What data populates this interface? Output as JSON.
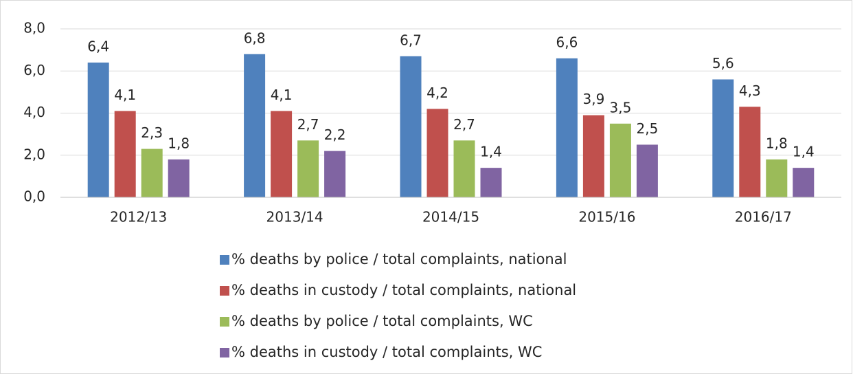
{
  "chart_data": {
    "type": "bar",
    "categories": [
      "2012/13",
      "2013/14",
      "2014/15",
      "2015/16",
      "2016/17"
    ],
    "series": [
      {
        "name": "% deaths by police / total complaints, national",
        "color": "#4f81bd",
        "values": [
          6.4,
          6.8,
          6.7,
          6.6,
          5.6
        ],
        "value_labels": [
          "6,4",
          "6,8",
          "6,7",
          "6,6",
          "5,6"
        ]
      },
      {
        "name": "% deaths in custody / total complaints, national",
        "color": "#c0504d",
        "values": [
          4.1,
          4.1,
          4.2,
          3.9,
          4.3
        ],
        "value_labels": [
          "4,1",
          "4,1",
          "4,2",
          "3,9",
          "4,3"
        ]
      },
      {
        "name": "% deaths by police / total complaints, WC",
        "color": "#9bbb59",
        "values": [
          2.3,
          2.7,
          2.7,
          3.5,
          1.8
        ],
        "value_labels": [
          "2,3",
          "2,7",
          "2,7",
          "3,5",
          "1,8"
        ]
      },
      {
        "name": "% deaths in custody / total complaints, WC",
        "color": "#8064a2",
        "values": [
          1.8,
          2.2,
          1.4,
          2.5,
          1.4
        ],
        "value_labels": [
          "1,8",
          "2,2",
          "1,4",
          "2,5",
          "1,4"
        ]
      }
    ],
    "ylim": [
      0,
      8
    ],
    "yticks": [
      {
        "value": 0,
        "label": "0,0"
      },
      {
        "value": 2,
        "label": "2,0"
      },
      {
        "value": 4,
        "label": "4,0"
      },
      {
        "value": 6,
        "label": "6,0"
      },
      {
        "value": 8,
        "label": "8,0"
      }
    ],
    "grid": true,
    "legend": "bottom"
  }
}
